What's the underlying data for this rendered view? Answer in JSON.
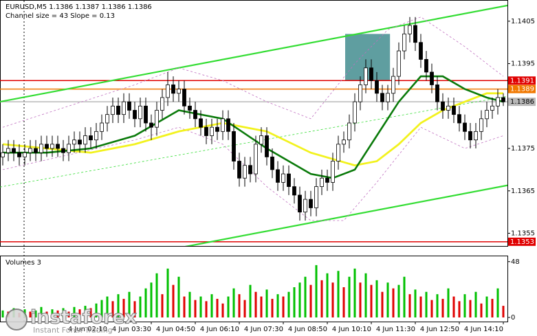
{
  "chart_data": [
    {
      "type": "candlestick",
      "title": "EURUSD,M5  1.1386 1.1387 1.1386 1.1386",
      "subtitle": "Channel size = 43 Slope = 0.13",
      "xlim": [
        -0.5,
        91.75
      ],
      "xticks": [
        {
          "value": 19,
          "label": "4 Jun 02:10"
        },
        {
          "value": 27,
          "label": "4 Jun 03:30"
        },
        {
          "value": 35,
          "label": "4 Jun 04:50"
        },
        {
          "value": 43,
          "label": "4 Jun 06:10"
        },
        {
          "value": 51,
          "label": "4 Jun 07:30"
        },
        {
          "value": 59,
          "label": "4 Jun 08:50"
        },
        {
          "value": 67,
          "label": "4 Jun 10:10"
        },
        {
          "value": 75,
          "label": "4 Jun 11:30"
        },
        {
          "value": 83,
          "label": "4 Jun 12:50"
        },
        {
          "value": 91,
          "label": "4 Jun 14:10"
        }
      ],
      "ylim": [
        1.1352,
        1.141
      ],
      "yticks": [
        1.1355,
        1.1365,
        1.1375,
        1.1395,
        1.1405
      ],
      "open": [
        1.1373,
        1.1374,
        1.1375,
        1.1374,
        1.1373,
        1.1374,
        1.1375,
        1.1374,
        1.1376,
        1.1375,
        1.1376,
        1.1375,
        1.1374,
        1.1376,
        1.1377,
        1.1376,
        1.1378,
        1.1377,
        1.1379,
        1.1381,
        1.1383,
        1.1385,
        1.1383,
        1.1386,
        1.1384,
        1.1382,
        1.1385,
        1.1381,
        1.138,
        1.1384,
        1.1387,
        1.139,
        1.1388,
        1.1389,
        1.1385,
        1.1384,
        1.1382,
        1.138,
        1.1378,
        1.138,
        1.1379,
        1.1382,
        1.1379,
        1.1372,
        1.1368,
        1.1371,
        1.1369,
        1.1376,
        1.1378,
        1.1373,
        1.137,
        1.1367,
        1.1369,
        1.1366,
        1.1364,
        1.136,
        1.1363,
        1.1361,
        1.1366,
        1.1368,
        1.1367,
        1.1372,
        1.1376,
        1.1377,
        1.1381,
        1.1386,
        1.139,
        1.1394,
        1.1391,
        1.1388,
        1.1386,
        1.1388,
        1.1392,
        1.1398,
        1.1402,
        1.1404,
        1.14,
        1.1396,
        1.1393,
        1.139,
        1.1386,
        1.1384,
        1.1385,
        1.1383,
        1.1381,
        1.1379,
        1.1377,
        1.1379,
        1.1382,
        1.1384,
        1.1385,
        1.1387
      ],
      "high": [
        1.1376,
        1.1377,
        1.1377,
        1.1376,
        1.1376,
        1.1377,
        1.1377,
        1.1378,
        1.1378,
        1.1378,
        1.1378,
        1.1377,
        1.1378,
        1.1379,
        1.1379,
        1.138,
        1.138,
        1.1381,
        1.1383,
        1.1385,
        1.1387,
        1.1387,
        1.1388,
        1.1388,
        1.1386,
        1.1387,
        1.1387,
        1.1383,
        1.1386,
        1.1389,
        1.1393,
        1.1392,
        1.1391,
        1.1391,
        1.1387,
        1.1386,
        1.1384,
        1.1382,
        1.1382,
        1.1382,
        1.1384,
        1.1384,
        1.1381,
        1.1374,
        1.1373,
        1.1373,
        1.1378,
        1.138,
        1.138,
        1.1375,
        1.1372,
        1.1371,
        1.1371,
        1.1368,
        1.1366,
        1.1365,
        1.1365,
        1.1368,
        1.137,
        1.137,
        1.1374,
        1.1378,
        1.1379,
        1.1383,
        1.1388,
        1.1392,
        1.1396,
        1.1396,
        1.1393,
        1.139,
        1.139,
        1.1394,
        1.14,
        1.1404,
        1.1406,
        1.1406,
        1.1402,
        1.1398,
        1.1395,
        1.1392,
        1.1388,
        1.1387,
        1.1387,
        1.1385,
        1.1383,
        1.1381,
        1.1381,
        1.1384,
        1.1386,
        1.1387,
        1.1389,
        1.1388
      ],
      "low": [
        1.1371,
        1.1372,
        1.1372,
        1.1371,
        1.1371,
        1.1372,
        1.1372,
        1.1372,
        1.1373,
        1.1373,
        1.1373,
        1.1372,
        1.1372,
        1.1374,
        1.1374,
        1.1374,
        1.1375,
        1.1375,
        1.1377,
        1.1379,
        1.1381,
        1.1381,
        1.1381,
        1.1382,
        1.138,
        1.138,
        1.1379,
        1.1377,
        1.1378,
        1.1382,
        1.1385,
        1.1386,
        1.1386,
        1.1383,
        1.1382,
        1.138,
        1.1378,
        1.1376,
        1.1376,
        1.1377,
        1.1377,
        1.1377,
        1.137,
        1.1366,
        1.1366,
        1.1367,
        1.1367,
        1.1374,
        1.1371,
        1.1368,
        1.1365,
        1.1365,
        1.1364,
        1.1362,
        1.1358,
        1.1358,
        1.1359,
        1.1359,
        1.1364,
        1.1365,
        1.1365,
        1.137,
        1.1374,
        1.1375,
        1.1379,
        1.1384,
        1.1388,
        1.1389,
        1.1386,
        1.1384,
        1.1384,
        1.1386,
        1.139,
        1.1396,
        1.14,
        1.1398,
        1.1394,
        1.1391,
        1.1388,
        1.1384,
        1.1382,
        1.1382,
        1.1381,
        1.1379,
        1.1377,
        1.1375,
        1.1375,
        1.1377,
        1.138,
        1.1382,
        1.1383,
        1.1385
      ],
      "close": [
        1.1374,
        1.1375,
        1.1374,
        1.1373,
        1.1374,
        1.1375,
        1.1374,
        1.1376,
        1.1375,
        1.1376,
        1.1375,
        1.1374,
        1.1376,
        1.1377,
        1.1376,
        1.1378,
        1.1377,
        1.1379,
        1.1381,
        1.1383,
        1.1385,
        1.1383,
        1.1386,
        1.1384,
        1.1382,
        1.1385,
        1.1381,
        1.138,
        1.1384,
        1.1387,
        1.139,
        1.1388,
        1.1389,
        1.1385,
        1.1384,
        1.1382,
        1.138,
        1.1378,
        1.138,
        1.1379,
        1.1382,
        1.1379,
        1.1372,
        1.1368,
        1.1371,
        1.1369,
        1.1376,
        1.1378,
        1.1373,
        1.137,
        1.1367,
        1.1369,
        1.1366,
        1.1364,
        1.136,
        1.1363,
        1.1361,
        1.1366,
        1.1368,
        1.1367,
        1.1372,
        1.1376,
        1.1377,
        1.1381,
        1.1386,
        1.139,
        1.1394,
        1.1391,
        1.1388,
        1.1386,
        1.1388,
        1.1392,
        1.1398,
        1.1402,
        1.1404,
        1.14,
        1.1396,
        1.1393,
        1.139,
        1.1386,
        1.1384,
        1.1385,
        1.1383,
        1.1381,
        1.1379,
        1.1377,
        1.1379,
        1.1382,
        1.1384,
        1.1385,
        1.1387,
        1.1386
      ],
      "up_color": "#ffffff",
      "down_color": "#000000",
      "levels": [
        {
          "value": 1.1391,
          "color": "#e00000"
        },
        {
          "value": 1.1389,
          "color": "#f07800"
        },
        {
          "value": 1.1386,
          "color": "#b8b8b8"
        },
        {
          "value": 1.1353,
          "color": "#e00000"
        }
      ],
      "zone": {
        "x": [
          62.25,
          70.4
        ],
        "values": [
          1.1402,
          1.1391
        ],
        "color": "#5f9ea0"
      },
      "lines": [
        {
          "style": "channel",
          "color": "#33dd33",
          "x": [
            -0.5,
            91.75
          ],
          "values": [
            1.1386,
            1.14087
          ]
        },
        {
          "style": "channel",
          "color": "#33dd33",
          "x": [
            25.75,
            91.75
          ],
          "values": [
            1.135,
            1.13663
          ]
        },
        {
          "style": "channel-mid",
          "color": "#33dd33",
          "x": [
            -0.5,
            91.75
          ],
          "values": [
            1.13659,
            1.13873
          ]
        },
        {
          "style": "band",
          "color": "#c070c0",
          "x": [
            0,
            24,
            32,
            40,
            48,
            56,
            64,
            70,
            76,
            84,
            91
          ],
          "values": [
            1.138,
            1.139,
            1.1394,
            1.1391,
            1.1386,
            1.1382,
            1.1395,
            1.1403,
            1.1406,
            1.1399,
            1.1392
          ]
        },
        {
          "style": "band",
          "color": "#c070c0",
          "x": [
            0,
            24,
            32,
            40,
            48,
            56,
            62,
            68,
            76,
            84,
            91
          ],
          "values": [
            1.137,
            1.1377,
            1.138,
            1.1376,
            1.1366,
            1.1358,
            1.1358,
            1.1367,
            1.138,
            1.1375,
            1.1378
          ]
        },
        {
          "style": "ma-slow",
          "color": "#f2f21e",
          "x": [
            0,
            16,
            24,
            32,
            40,
            48,
            56,
            64,
            68,
            72,
            76,
            80,
            84,
            88,
            91
          ],
          "values": [
            1.1376,
            1.1374,
            1.1376,
            1.1379,
            1.1381,
            1.1379,
            1.1374,
            1.1371,
            1.1372,
            1.1376,
            1.1381,
            1.1384,
            1.1386,
            1.1388,
            1.1388
          ]
        },
        {
          "style": "ma-fast",
          "color": "#0a7a0a",
          "x": [
            0,
            8,
            16,
            24,
            32,
            40,
            48,
            56,
            60,
            64,
            68,
            72,
            76,
            80,
            84,
            88,
            91
          ],
          "values": [
            1.1374,
            1.1374,
            1.1375,
            1.1378,
            1.1384,
            1.1382,
            1.1375,
            1.1369,
            1.1368,
            1.137,
            1.1378,
            1.1386,
            1.1392,
            1.1392,
            1.1389,
            1.1387,
            1.1386
          ]
        }
      ]
    },
    {
      "type": "volume",
      "title": "Volumes 3",
      "xlim": [
        -0.5,
        91.75
      ],
      "ylim": [
        0,
        52
      ],
      "yticks": [
        0,
        48
      ],
      "up_color": "#00c000",
      "down_color": "#e00000",
      "values": [
        6,
        5,
        8,
        4,
        7,
        5,
        6,
        9,
        5,
        7,
        6,
        8,
        5,
        9,
        7,
        10,
        8,
        12,
        15,
        18,
        14,
        20,
        16,
        22,
        14,
        18,
        25,
        30,
        38,
        20,
        42,
        28,
        35,
        18,
        22,
        15,
        18,
        14,
        20,
        16,
        12,
        18,
        25,
        20,
        15,
        28,
        22,
        18,
        24,
        16,
        20,
        18,
        22,
        26,
        30,
        35,
        28,
        45,
        32,
        38,
        30,
        40,
        26,
        35,
        42,
        30,
        38,
        28,
        32,
        22,
        30,
        25,
        28,
        35,
        20,
        24,
        18,
        22,
        15,
        20,
        16,
        25,
        18,
        14,
        20,
        15,
        22,
        12,
        18,
        16,
        25,
        10
      ]
    }
  ],
  "watermark": {
    "brand": "instaforex",
    "tagline": "Instant Forex Trading"
  }
}
